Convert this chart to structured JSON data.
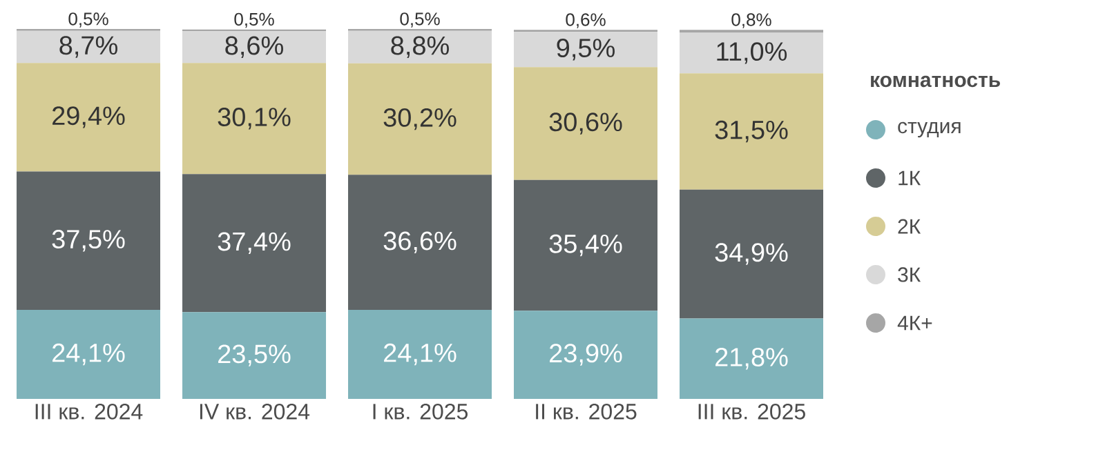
{
  "chart_data": {
    "type": "bar",
    "stacked": true,
    "legend": "right",
    "legend_title": "комнатность",
    "marker": "circle",
    "categories": [
      "III кв. 2024",
      "IV кв. 2024",
      "I кв. 2025",
      "II кв. 2025",
      "III кв. 2025"
    ],
    "series": [
      {
        "name": "студия",
        "color": "#7fb3ba",
        "values": [
          24.1,
          23.5,
          24.1,
          23.9,
          21.8
        ],
        "value_labels": [
          "24,1%",
          "23,5%",
          "24,1%",
          "23,9%",
          "21,8%"
        ]
      },
      {
        "name": "1К",
        "color": "#5f6567",
        "values": [
          37.5,
          37.4,
          36.6,
          35.4,
          34.9
        ],
        "value_labels": [
          "37,5%",
          "37,4%",
          "36,6%",
          "35,4%",
          "34,9%"
        ]
      },
      {
        "name": "2К",
        "color": "#d6cc95",
        "values": [
          29.4,
          30.1,
          30.2,
          30.6,
          31.5
        ],
        "value_labels": [
          "29,4%",
          "30,1%",
          "30,2%",
          "30,6%",
          "31,5%"
        ]
      },
      {
        "name": "3К",
        "color": "#d9d9d9",
        "values": [
          8.7,
          8.6,
          8.8,
          9.5,
          11.0
        ],
        "value_labels": [
          "8,7%",
          "8,6%",
          "8,8%",
          "9,5%",
          "11,0%"
        ]
      },
      {
        "name": "4К+",
        "color": "#a6a6a6",
        "values": [
          0.5,
          0.5,
          0.5,
          0.6,
          0.8
        ],
        "value_labels": [
          "0,5%",
          "0,5%",
          "0,5%",
          "0,6%",
          "0,8%"
        ]
      }
    ]
  }
}
